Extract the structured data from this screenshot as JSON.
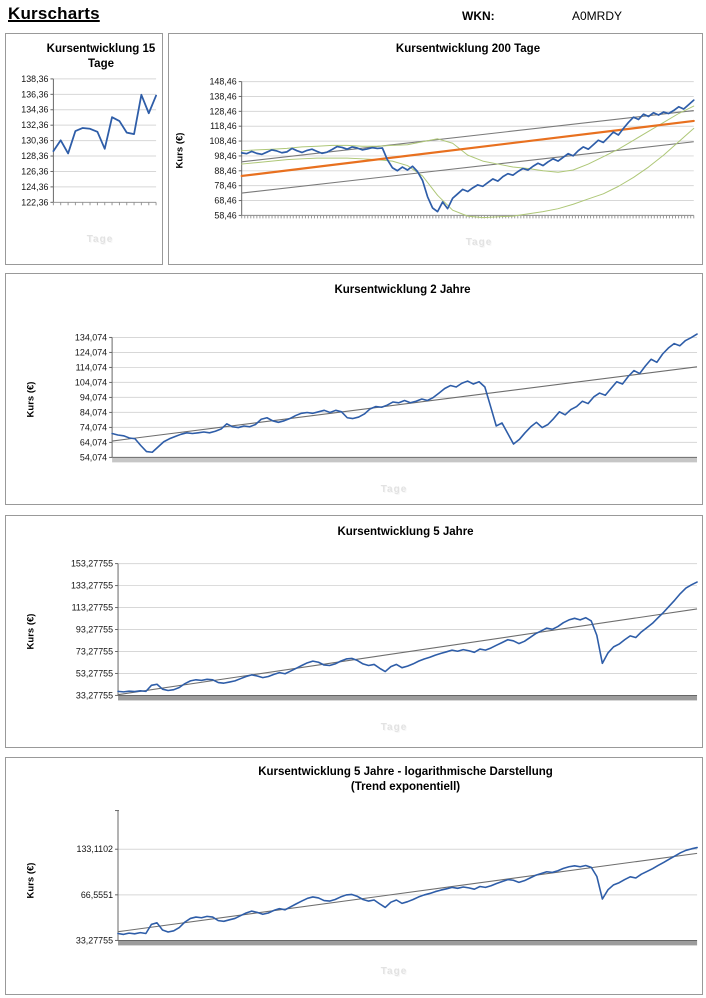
{
  "header": {
    "title": "Kurscharts",
    "wkn_label": "WKN:",
    "wkn_value": "A0MRDY"
  },
  "chart_data": [
    {
      "type": "line",
      "title": "Kursentwicklung 15 Tage",
      "xlabel": "Tage",
      "ylabel": "",
      "ylim": [
        122.36,
        138.36
      ],
      "grid": true,
      "yticks": [
        {
          "value": 138.36,
          "label": "138,36"
        },
        {
          "value": 136.36,
          "label": "136,36"
        },
        {
          "value": 134.36,
          "label": "134,36"
        },
        {
          "value": 132.36,
          "label": "132,36"
        },
        {
          "value": 130.36,
          "label": "130,36"
        },
        {
          "value": 128.36,
          "label": "128,36"
        },
        {
          "value": 126.36,
          "label": "126,36"
        },
        {
          "value": 124.36,
          "label": "124,36"
        },
        {
          "value": 122.36,
          "label": "122,36"
        }
      ],
      "trends": [],
      "series": [
        {
          "name": "Kurs",
          "color": "#2e5da8",
          "width": 1.8,
          "values": [
            129.0,
            130.4,
            128.7,
            131.6,
            132.0,
            131.9,
            131.5,
            129.3,
            133.4,
            132.9,
            131.4,
            131.2,
            136.3,
            133.9,
            136.2
          ]
        }
      ]
    },
    {
      "type": "line",
      "title": "Kursentwicklung 200 Tage",
      "xlabel": "Tage",
      "ylabel": "Kurs (€)",
      "ylim": [
        58.46,
        148.46
      ],
      "grid": true,
      "yticks": [
        {
          "value": 148.46,
          "label": "148,46"
        },
        {
          "value": 138.46,
          "label": "138,46"
        },
        {
          "value": 128.46,
          "label": "128,46"
        },
        {
          "value": 118.46,
          "label": "118,46"
        },
        {
          "value": 108.46,
          "label": "108,46"
        },
        {
          "value": 98.46,
          "label": "98,46"
        },
        {
          "value": 88.46,
          "label": "88,46"
        },
        {
          "value": 78.46,
          "label": "78,46"
        },
        {
          "value": 68.46,
          "label": "68,46"
        },
        {
          "value": 58.46,
          "label": "58,46"
        }
      ],
      "trends": [
        {
          "name": "Kanal oben",
          "color": "#7a7a7a",
          "width": 1.1,
          "from": 94.5,
          "to": 129
        },
        {
          "name": "Kanal unten",
          "color": "#7a7a7a",
          "width": 1.1,
          "from": 73.5,
          "to": 108
        }
      ],
      "series": [
        {
          "name": "Band oben",
          "color": "#aec777",
          "width": 1,
          "values": [
            102,
            102.5,
            103,
            103.5,
            104.5,
            105,
            105.5,
            105.5,
            105,
            105,
            105.5,
            106,
            108,
            110,
            107,
            99,
            95,
            93,
            91,
            90,
            88.5,
            87.5,
            89,
            93,
            98,
            103,
            109,
            115,
            121,
            127,
            132
          ]
        },
        {
          "name": "Band unten",
          "color": "#aec777",
          "width": 1,
          "values": [
            93,
            94,
            95,
            96,
            96.5,
            97,
            97,
            97,
            96.5,
            96,
            95,
            92,
            85,
            72,
            62,
            58,
            57,
            57.5,
            58,
            59.5,
            61,
            63,
            66,
            69.5,
            73,
            78,
            84,
            91,
            99,
            108,
            117
          ]
        },
        {
          "name": "Trend",
          "color": "#e8701f",
          "width": 2.2,
          "values": [
            85,
            122
          ]
        },
        {
          "name": "Kurs",
          "color": "#2e5da8",
          "width": 1.7,
          "values": [
            100.5,
            100,
            101.5,
            100.2,
            99.5,
            101,
            102.5,
            101.8,
            100.6,
            101.2,
            103.5,
            102,
            100.8,
            102.2,
            103,
            101.5,
            100.2,
            101,
            102.8,
            104.8,
            104.2,
            103,
            104.5,
            103.8,
            102.5,
            103.2,
            104,
            103.5,
            103.8,
            96,
            90.5,
            88.5,
            91,
            89,
            91.5,
            88,
            82,
            71,
            63.5,
            61,
            67.5,
            63,
            70,
            73,
            76,
            74.5,
            77,
            79,
            78,
            80.5,
            83,
            81.5,
            84.5,
            86.5,
            85.5,
            88,
            90,
            89,
            91.5,
            93.5,
            92,
            94.5,
            96.5,
            95,
            97.5,
            100,
            98.5,
            102,
            104.5,
            103,
            106,
            109,
            107.5,
            111,
            114.5,
            112.5,
            117,
            121,
            124.5,
            123,
            126.5,
            125,
            127.5,
            126,
            128,
            127,
            129,
            131.5,
            130,
            133,
            136
          ]
        }
      ]
    },
    {
      "type": "line",
      "title": "Kursentwicklung 2 Jahre",
      "xlabel": "Tage",
      "ylabel": "Kurs (€)",
      "ylim": [
        54.074,
        134.074
      ],
      "grid": true,
      "yticks": [
        {
          "value": 134.074,
          "label": "134,074"
        },
        {
          "value": 124.074,
          "label": "124,074"
        },
        {
          "value": 114.074,
          "label": "114,074"
        },
        {
          "value": 104.074,
          "label": "104,074"
        },
        {
          "value": 94.074,
          "label": "94,074"
        },
        {
          "value": 84.074,
          "label": "84,074"
        },
        {
          "value": 74.074,
          "label": "74,074"
        },
        {
          "value": 64.074,
          "label": "64,074"
        },
        {
          "value": 54.074,
          "label": "54,074"
        }
      ],
      "trends": [
        {
          "name": "Trend linear",
          "color": "#6e6e6e",
          "width": 1.1,
          "from": 65,
          "to": 114.5
        }
      ],
      "series": [
        {
          "name": "Kurs",
          "color": "#2e5da8",
          "width": 1.6,
          "values": [
            70,
            69,
            68.5,
            67,
            66.5,
            62,
            58,
            57.5,
            61,
            64.5,
            66.5,
            68,
            69.5,
            70.5,
            70,
            70.5,
            71,
            70.5,
            71.5,
            73,
            76.5,
            74.5,
            74,
            75,
            74.5,
            76,
            79.5,
            80.5,
            78.5,
            77.5,
            78.5,
            80,
            82,
            83.5,
            84,
            83.5,
            84.5,
            85.5,
            84,
            85.5,
            84.5,
            80.5,
            80,
            81,
            83,
            86.5,
            88,
            87.5,
            89,
            91,
            90.5,
            92,
            90.5,
            91.5,
            93,
            92,
            94,
            97,
            100,
            102,
            101,
            103.5,
            105,
            103,
            104.5,
            101,
            88,
            75,
            77,
            70,
            63,
            66,
            70.5,
            74.5,
            77.5,
            74,
            76,
            80,
            84.5,
            82.5,
            86,
            88,
            91.5,
            90,
            94.5,
            97,
            95.5,
            100,
            104.5,
            103,
            108,
            112,
            110,
            115,
            119.5,
            117.5,
            123,
            127,
            130,
            128.5,
            132,
            134,
            136.3
          ]
        }
      ]
    },
    {
      "type": "line",
      "title": "Kursentwicklung 5 Jahre",
      "xlabel": "Tage",
      "ylabel": "Kurs (€)",
      "ylim": [
        33.27755,
        153.27755
      ],
      "grid": true,
      "yticks": [
        {
          "value": 153.27755,
          "label": "153,27755"
        },
        {
          "value": 133.27755,
          "label": "133,27755"
        },
        {
          "value": 113.27755,
          "label": "113,27755"
        },
        {
          "value": 93.27755,
          "label": "93,27755"
        },
        {
          "value": 73.27755,
          "label": "73,27755"
        },
        {
          "value": 53.27755,
          "label": "53,27755"
        },
        {
          "value": 33.27755,
          "label": "33,27755"
        }
      ],
      "trends": [
        {
          "name": "Trend linear",
          "color": "#6e6e6e",
          "width": 1.1,
          "from": 34,
          "to": 112
        }
      ],
      "series": [
        {
          "name": "Kurs",
          "color": "#2e5da8",
          "width": 1.6,
          "values": [
            37,
            36.5,
            37.2,
            36.8,
            37.5,
            37,
            42.5,
            43.5,
            39,
            37.8,
            38.5,
            40.5,
            44,
            46.5,
            47.5,
            47,
            48,
            47.5,
            45,
            44.5,
            45.5,
            46.5,
            48.5,
            50.5,
            52,
            51,
            49.5,
            50.5,
            52.5,
            54,
            53,
            55.5,
            58,
            60.5,
            63,
            64.5,
            63.5,
            61,
            60.5,
            62,
            64.5,
            66.5,
            67,
            65,
            62,
            60.5,
            61.5,
            58,
            55,
            59.5,
            61.5,
            58.5,
            60,
            62,
            64.5,
            66.5,
            68,
            70,
            71.5,
            73,
            74.5,
            73.5,
            75,
            74,
            72.5,
            75.5,
            74.5,
            76.5,
            79,
            81.5,
            84,
            83,
            80.5,
            82.5,
            86,
            89.5,
            92,
            94.5,
            93.5,
            96,
            99.5,
            102,
            103.5,
            102,
            104,
            101,
            88,
            62.5,
            72,
            77.5,
            80,
            84,
            87.5,
            86,
            91,
            95,
            99,
            104,
            109,
            114.5,
            120,
            126,
            131,
            134,
            136.5
          ]
        }
      ]
    },
    {
      "type": "line",
      "title": "Kursentwicklung 5 Jahre - logarithmische Darstellung",
      "subtitle": "(Trend exponentiell)",
      "xlabel": "Tage",
      "ylabel": "Kurs (€)",
      "yscale": "log",
      "ylim": [
        33.27755,
        133.1102
      ],
      "grid": true,
      "yticks": [
        {
          "value": 133.1102,
          "label": "133,1102"
        },
        {
          "value": 66.5551,
          "label": "66,5551"
        },
        {
          "value": 33.27755,
          "label": "33,27755"
        }
      ],
      "trends": [
        {
          "name": "Trend exponentiell",
          "color": "#6e6e6e",
          "width": 1.1,
          "from": 38,
          "to": 125
        }
      ],
      "series": [
        {
          "name": "Kurs",
          "color": "#2e5da8",
          "width": 1.6,
          "values": [
            37,
            36.5,
            37.2,
            36.8,
            37.5,
            37,
            42.5,
            43.5,
            39,
            37.8,
            38.5,
            40.5,
            44,
            46.5,
            47.5,
            47,
            48,
            47.5,
            45,
            44.5,
            45.5,
            46.5,
            48.5,
            50.5,
            52,
            51,
            49.5,
            50.5,
            52.5,
            54,
            53,
            55.5,
            58,
            60.5,
            63,
            64.5,
            63.5,
            61,
            60.5,
            62,
            64.5,
            66.5,
            67,
            65,
            62,
            60.5,
            61.5,
            58,
            55,
            59.5,
            61.5,
            58.5,
            60,
            62,
            64.5,
            66.5,
            68,
            70,
            71.5,
            73,
            74.5,
            73.5,
            75,
            74,
            72.5,
            75.5,
            74.5,
            76.5,
            79,
            81.5,
            84,
            83,
            80.5,
            82.5,
            86,
            89.5,
            92,
            94.5,
            93.5,
            96,
            99.5,
            102,
            103.5,
            102,
            104,
            101,
            88,
            62.5,
            72,
            77.5,
            80,
            84,
            87.5,
            86,
            91,
            95,
            99,
            104,
            109,
            114.5,
            120,
            126,
            131,
            134,
            136.5
          ]
        }
      ]
    }
  ]
}
